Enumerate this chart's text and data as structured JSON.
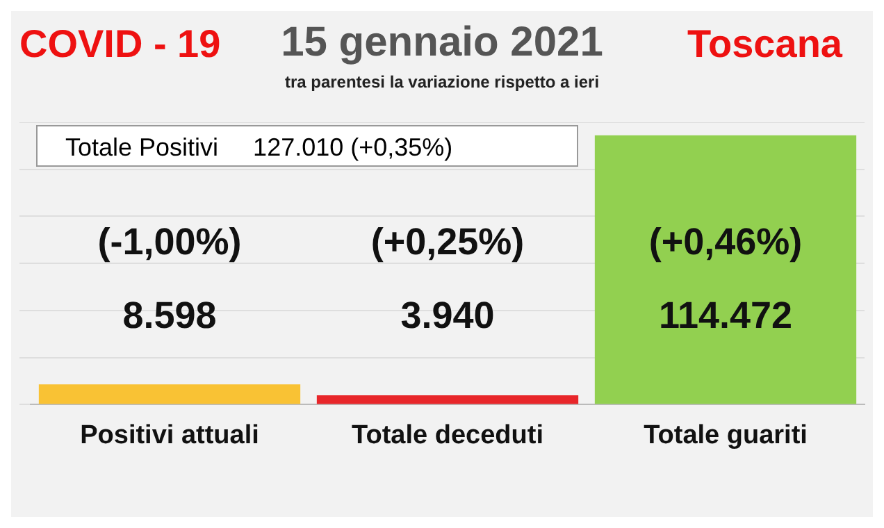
{
  "chart_data": {
    "type": "bar",
    "title": "15 gennaio 2021",
    "subtitle": "tra parentesi la variazione rispetto a ieri",
    "categories": [
      "Positivi attuali",
      "Totale deceduti",
      "Totale guariti"
    ],
    "values": [
      8598,
      3940,
      114472
    ],
    "colors": [
      "#f9c234",
      "#e8262a",
      "#92d050"
    ],
    "value_labels": [
      "8.598",
      "3.940",
      "114.472"
    ],
    "annotations": [
      "COVID - 19",
      "Toscana",
      "Totale Positivi     127.010 (+0,35%)",
      "(-1,00%)",
      "(+0,25%)",
      "(+0,46%)"
    ],
    "grid": "y",
    "legend": false
  }
}
